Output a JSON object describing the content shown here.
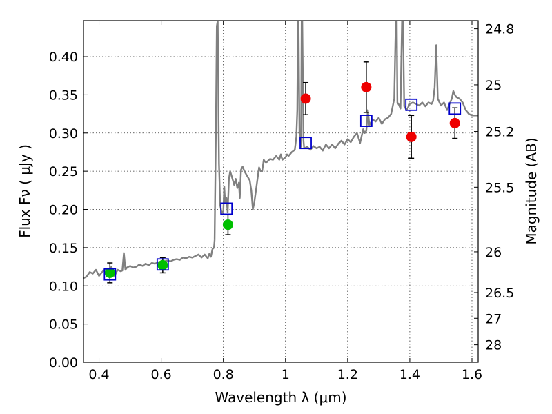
{
  "chart_data": {
    "type": "scatter",
    "title": "",
    "xlabel": "Wavelength  λ (μm)",
    "ylabel": "Flux  Fν  ( μJy )",
    "y2label": "Magnitude (AB)",
    "xlim": [
      0.35,
      1.62
    ],
    "ylim": [
      0.0,
      0.447
    ],
    "grid": true,
    "legend": "none",
    "x_ticks": [
      {
        "value": 0.4,
        "label": "0.4"
      },
      {
        "value": 0.6,
        "label": "0.6"
      },
      {
        "value": 0.8,
        "label": "0.8"
      },
      {
        "value": 1.0,
        "label": "1"
      },
      {
        "value": 1.2,
        "label": "1.2"
      },
      {
        "value": 1.4,
        "label": "1.4"
      },
      {
        "value": 1.6,
        "label": "1.6"
      }
    ],
    "y_ticks": [
      {
        "value": 0.0,
        "label": "0.00"
      },
      {
        "value": 0.05,
        "label": "0.05"
      },
      {
        "value": 0.1,
        "label": "0.10"
      },
      {
        "value": 0.15,
        "label": "0.15"
      },
      {
        "value": 0.2,
        "label": "0.20"
      },
      {
        "value": 0.25,
        "label": "0.25"
      },
      {
        "value": 0.3,
        "label": "0.30"
      },
      {
        "value": 0.35,
        "label": "0.35"
      },
      {
        "value": 0.4,
        "label": "0.40"
      }
    ],
    "magnitude_ticks": [
      {
        "mag": 24.8,
        "label": "24.8"
      },
      {
        "mag": 25.0,
        "label": "25"
      },
      {
        "mag": 25.2,
        "label": "25.2"
      },
      {
        "mag": 25.5,
        "label": "25.5"
      },
      {
        "mag": 26.0,
        "label": "26"
      },
      {
        "mag": 26.5,
        "label": "26.5"
      },
      {
        "mag": 27.0,
        "label": "27"
      },
      {
        "mag": 28.0,
        "label": "28"
      }
    ],
    "series": [
      {
        "kind": "line",
        "color": "#808080",
        "points": [
          [
            0.35,
            0.11
          ],
          [
            0.36,
            0.112
          ],
          [
            0.37,
            0.118
          ],
          [
            0.38,
            0.116
          ],
          [
            0.39,
            0.121
          ],
          [
            0.4,
            0.113
          ],
          [
            0.41,
            0.118
          ],
          [
            0.42,
            0.122
          ],
          [
            0.43,
            0.117
          ],
          [
            0.44,
            0.125
          ],
          [
            0.45,
            0.113
          ],
          [
            0.46,
            0.121
          ],
          [
            0.47,
            0.119
          ],
          [
            0.475,
            0.12
          ],
          [
            0.48,
            0.143
          ],
          [
            0.485,
            0.121
          ],
          [
            0.49,
            0.124
          ],
          [
            0.5,
            0.126
          ],
          [
            0.51,
            0.124
          ],
          [
            0.52,
            0.125
          ],
          [
            0.53,
            0.128
          ],
          [
            0.54,
            0.126
          ],
          [
            0.55,
            0.129
          ],
          [
            0.56,
            0.127
          ],
          [
            0.57,
            0.13
          ],
          [
            0.58,
            0.129
          ],
          [
            0.59,
            0.131
          ],
          [
            0.6,
            0.13
          ],
          [
            0.61,
            0.132
          ],
          [
            0.62,
            0.133
          ],
          [
            0.63,
            0.132
          ],
          [
            0.64,
            0.134
          ],
          [
            0.65,
            0.135
          ],
          [
            0.66,
            0.134
          ],
          [
            0.67,
            0.137
          ],
          [
            0.68,
            0.136
          ],
          [
            0.69,
            0.138
          ],
          [
            0.7,
            0.137
          ],
          [
            0.71,
            0.139
          ],
          [
            0.72,
            0.141
          ],
          [
            0.73,
            0.137
          ],
          [
            0.74,
            0.141
          ],
          [
            0.75,
            0.136
          ],
          [
            0.755,
            0.142
          ],
          [
            0.76,
            0.138
          ],
          [
            0.765,
            0.148
          ],
          [
            0.77,
            0.15
          ],
          [
            0.772,
            0.16
          ],
          [
            0.776,
            0.3
          ],
          [
            0.779,
            0.44
          ],
          [
            0.782,
            0.447
          ],
          [
            0.786,
            0.26
          ],
          [
            0.79,
            0.205
          ],
          [
            0.795,
            0.195
          ],
          [
            0.8,
            0.198
          ],
          [
            0.803,
            0.23
          ],
          [
            0.806,
            0.208
          ],
          [
            0.81,
            0.215
          ],
          [
            0.814,
            0.196
          ],
          [
            0.818,
            0.24
          ],
          [
            0.822,
            0.25
          ],
          [
            0.828,
            0.242
          ],
          [
            0.835,
            0.232
          ],
          [
            0.84,
            0.24
          ],
          [
            0.845,
            0.228
          ],
          [
            0.85,
            0.235
          ],
          [
            0.853,
            0.215
          ],
          [
            0.857,
            0.252
          ],
          [
            0.862,
            0.256
          ],
          [
            0.868,
            0.25
          ],
          [
            0.875,
            0.245
          ],
          [
            0.885,
            0.238
          ],
          [
            0.89,
            0.225
          ],
          [
            0.895,
            0.2
          ],
          [
            0.9,
            0.21
          ],
          [
            0.905,
            0.225
          ],
          [
            0.91,
            0.24
          ],
          [
            0.915,
            0.255
          ],
          [
            0.92,
            0.25
          ],
          [
            0.925,
            0.25
          ],
          [
            0.93,
            0.265
          ],
          [
            0.935,
            0.262
          ],
          [
            0.94,
            0.262
          ],
          [
            0.95,
            0.266
          ],
          [
            0.96,
            0.265
          ],
          [
            0.97,
            0.27
          ],
          [
            0.98,
            0.265
          ],
          [
            0.985,
            0.272
          ],
          [
            0.99,
            0.265
          ],
          [
            1.0,
            0.268
          ],
          [
            1.005,
            0.272
          ],
          [
            1.01,
            0.27
          ],
          [
            1.02,
            0.275
          ],
          [
            1.03,
            0.278
          ],
          [
            1.035,
            0.295
          ],
          [
            1.038,
            0.33
          ],
          [
            1.04,
            0.447
          ],
          [
            1.042,
            0.447
          ],
          [
            1.045,
            0.3
          ],
          [
            1.05,
            0.282
          ],
          [
            1.052,
            0.447
          ],
          [
            1.054,
            0.447
          ],
          [
            1.058,
            0.29
          ],
          [
            1.06,
            0.28
          ],
          [
            1.07,
            0.282
          ],
          [
            1.08,
            0.278
          ],
          [
            1.09,
            0.283
          ],
          [
            1.1,
            0.28
          ],
          [
            1.11,
            0.282
          ],
          [
            1.12,
            0.277
          ],
          [
            1.13,
            0.285
          ],
          [
            1.14,
            0.28
          ],
          [
            1.15,
            0.285
          ],
          [
            1.16,
            0.28
          ],
          [
            1.17,
            0.286
          ],
          [
            1.18,
            0.29
          ],
          [
            1.19,
            0.285
          ],
          [
            1.2,
            0.292
          ],
          [
            1.21,
            0.288
          ],
          [
            1.22,
            0.295
          ],
          [
            1.23,
            0.3
          ],
          [
            1.24,
            0.287
          ],
          [
            1.245,
            0.296
          ],
          [
            1.25,
            0.305
          ],
          [
            1.255,
            0.3
          ],
          [
            1.26,
            0.303
          ],
          [
            1.265,
            0.33
          ],
          [
            1.27,
            0.31
          ],
          [
            1.28,
            0.318
          ],
          [
            1.29,
            0.315
          ],
          [
            1.3,
            0.32
          ],
          [
            1.31,
            0.312
          ],
          [
            1.32,
            0.318
          ],
          [
            1.33,
            0.32
          ],
          [
            1.34,
            0.325
          ],
          [
            1.35,
            0.345
          ],
          [
            1.355,
            0.447
          ],
          [
            1.358,
            0.447
          ],
          [
            1.36,
            0.34
          ],
          [
            1.365,
            0.337
          ],
          [
            1.37,
            0.332
          ],
          [
            1.375,
            0.447
          ],
          [
            1.378,
            0.447
          ],
          [
            1.382,
            0.335
          ],
          [
            1.39,
            0.33
          ],
          [
            1.4,
            0.338
          ],
          [
            1.41,
            0.34
          ],
          [
            1.42,
            0.338
          ],
          [
            1.43,
            0.336
          ],
          [
            1.44,
            0.34
          ],
          [
            1.45,
            0.335
          ],
          [
            1.46,
            0.34
          ],
          [
            1.47,
            0.338
          ],
          [
            1.475,
            0.342
          ],
          [
            1.48,
            0.36
          ],
          [
            1.485,
            0.415
          ],
          [
            1.49,
            0.345
          ],
          [
            1.5,
            0.336
          ],
          [
            1.51,
            0.34
          ],
          [
            1.52,
            0.33
          ],
          [
            1.53,
            0.34
          ],
          [
            1.535,
            0.345
          ],
          [
            1.54,
            0.355
          ],
          [
            1.545,
            0.35
          ],
          [
            1.55,
            0.347
          ],
          [
            1.56,
            0.345
          ],
          [
            1.57,
            0.34
          ],
          [
            1.58,
            0.33
          ],
          [
            1.59,
            0.325
          ],
          [
            1.6,
            0.323
          ],
          [
            1.61,
            0.323
          ],
          [
            1.62,
            0.323
          ]
        ]
      },
      {
        "kind": "scatter",
        "marker": "circle",
        "color": "#00c000",
        "points": [
          {
            "x": 0.435,
            "y": 0.117,
            "yerr": 0.013
          },
          {
            "x": 0.605,
            "y": 0.127,
            "yerr": 0.01
          },
          {
            "x": 0.815,
            "y": 0.18,
            "yerr": 0.013
          }
        ]
      },
      {
        "kind": "scatter",
        "marker": "circle",
        "color": "#ee0000",
        "points": [
          {
            "x": 1.065,
            "y": 0.345,
            "yerr": 0.021
          },
          {
            "x": 1.26,
            "y": 0.36,
            "yerr": 0.033
          },
          {
            "x": 1.405,
            "y": 0.295,
            "yerr": 0.028
          },
          {
            "x": 1.545,
            "y": 0.313,
            "yerr": 0.02
          }
        ]
      },
      {
        "kind": "scatter",
        "marker": "square-open",
        "color": "#0000cc",
        "points": [
          {
            "x": 0.435,
            "y": 0.115
          },
          {
            "x": 0.605,
            "y": 0.128
          },
          {
            "x": 0.81,
            "y": 0.201
          },
          {
            "x": 1.065,
            "y": 0.287
          },
          {
            "x": 1.26,
            "y": 0.316
          },
          {
            "x": 1.405,
            "y": 0.337
          },
          {
            "x": 1.545,
            "y": 0.332
          }
        ]
      }
    ]
  }
}
